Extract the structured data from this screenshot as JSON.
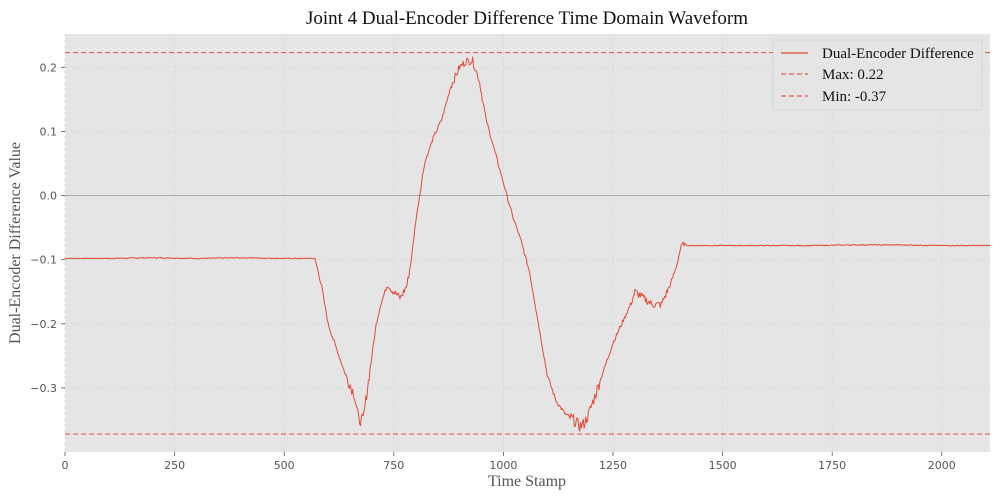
{
  "chart_data": {
    "type": "line",
    "title": "Joint 4 Dual-Encoder Difference Time Domain Waveform",
    "xlabel": "Time Stamp",
    "ylabel": "Dual-Encoder Difference Value",
    "xlim": [
      0,
      2110
    ],
    "ylim": [
      -0.4,
      0.252
    ],
    "xticks": [
      0,
      250,
      500,
      750,
      1000,
      1250,
      1500,
      1750,
      2000
    ],
    "yticks": [
      -0.3,
      -0.2,
      -0.1,
      0.0,
      0.1,
      0.2
    ],
    "ytick_labels": [
      "−0.3",
      "−0.2",
      "−0.1",
      "0.0",
      "0.1",
      "0.2"
    ],
    "grid": true,
    "zero_line": true,
    "legend_position": "top-right",
    "series_color": "#e24a33",
    "series": [
      {
        "name": "Dual-Encoder Difference",
        "x": [
          0,
          100,
          200,
          300,
          400,
          500,
          570,
          585,
          600,
          620,
          640,
          660,
          670,
          680,
          690,
          700,
          710,
          720,
          735,
          750,
          765,
          780,
          790,
          800,
          820,
          840,
          860,
          880,
          900,
          915,
          930,
          945,
          960,
          980,
          1000,
          1020,
          1040,
          1060,
          1080,
          1100,
          1120,
          1140,
          1160,
          1175,
          1185,
          1195,
          1210,
          1230,
          1250,
          1270,
          1290,
          1300,
          1320,
          1340,
          1360,
          1380,
          1395,
          1405,
          1410,
          1420,
          1500,
          1600,
          1700,
          1800,
          1900,
          2000,
          2110
        ],
        "y": [
          -0.098,
          -0.098,
          -0.097,
          -0.098,
          -0.097,
          -0.098,
          -0.098,
          -0.14,
          -0.2,
          -0.24,
          -0.28,
          -0.31,
          -0.35,
          -0.35,
          -0.3,
          -0.25,
          -0.2,
          -0.17,
          -0.14,
          -0.15,
          -0.16,
          -0.14,
          -0.1,
          -0.04,
          0.05,
          0.09,
          0.12,
          0.17,
          0.2,
          0.21,
          0.21,
          0.18,
          0.12,
          0.07,
          0.02,
          -0.03,
          -0.07,
          -0.12,
          -0.2,
          -0.28,
          -0.32,
          -0.34,
          -0.35,
          -0.36,
          -0.355,
          -0.34,
          -0.31,
          -0.27,
          -0.23,
          -0.2,
          -0.17,
          -0.15,
          -0.16,
          -0.17,
          -0.17,
          -0.14,
          -0.11,
          -0.08,
          -0.075,
          -0.078,
          -0.078,
          -0.078,
          -0.078,
          -0.077,
          -0.077,
          -0.078,
          -0.078
        ]
      }
    ],
    "hlines": [
      {
        "name": "Max: 0.22",
        "value": 0.223
      },
      {
        "name": "Min: -0.37",
        "value": -0.372
      }
    ]
  }
}
